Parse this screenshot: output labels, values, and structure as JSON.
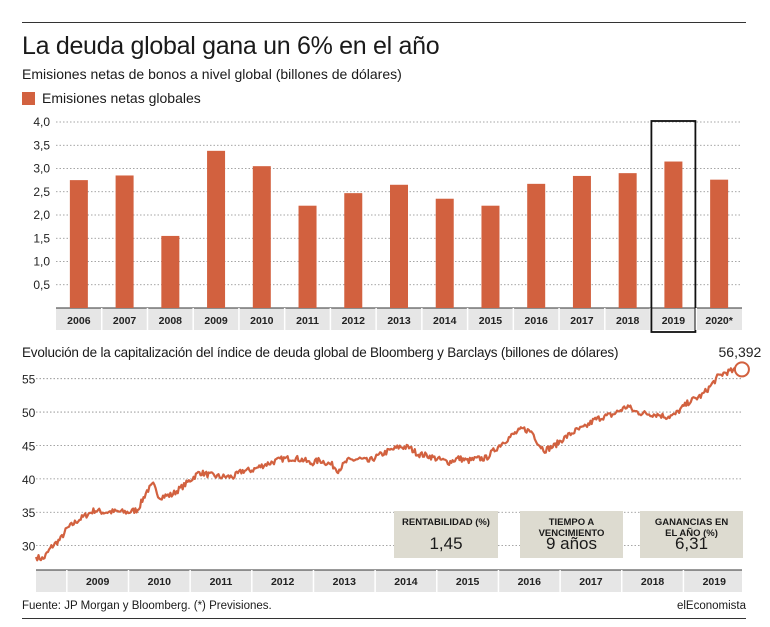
{
  "header": {
    "title": "La deuda global gana un 6% en el año",
    "subtitle": "Emisiones netas de bonos a nivel global (billones de dólares)",
    "legend_label": "Emisiones netas globales"
  },
  "colors": {
    "bar": "#d2613f",
    "line": "#d2613f",
    "grid": "#888888",
    "box_bg": "#dddbd0",
    "axis_band": "#e6e6e6"
  },
  "chart_data": [
    {
      "type": "bar",
      "title": "Emisiones netas de bonos a nivel global (billones de dólares)",
      "series_name": "Emisiones netas globales",
      "categories": [
        "2006",
        "2007",
        "2008",
        "2009",
        "2010",
        "2011",
        "2012",
        "2013",
        "2014",
        "2015",
        "2016",
        "2017",
        "2018",
        "2019",
        "2020*"
      ],
      "values": [
        2.75,
        2.85,
        1.55,
        3.38,
        3.05,
        2.2,
        2.47,
        2.65,
        2.35,
        2.2,
        2.67,
        2.84,
        2.9,
        3.15,
        2.76
      ],
      "ylim": [
        0,
        4.0
      ],
      "yticks": [
        "0,5",
        "1,0",
        "1,5",
        "2,0",
        "2,5",
        "3,0",
        "3,5",
        "4,0"
      ],
      "ytick_values": [
        0.5,
        1.0,
        1.5,
        2.0,
        2.5,
        3.0,
        3.5,
        4.0
      ],
      "highlight": "2019",
      "grid": true
    },
    {
      "type": "line",
      "title": "Evolución de la capitalización del índice de deuda global de Bloomberg y Barclays (billones de dólares)",
      "x_range": [
        2008.5,
        2019.95
      ],
      "xticks": [
        "2009",
        "2010",
        "2011",
        "2012",
        "2013",
        "2014",
        "2015",
        "2016",
        "2017",
        "2018",
        "2019"
      ],
      "ylim": [
        26.5,
        57.5
      ],
      "yticks": [
        "30",
        "35",
        "40",
        "45",
        "50",
        "55"
      ],
      "ytick_values": [
        30,
        35,
        40,
        45,
        50,
        55
      ],
      "points": [
        [
          2008.5,
          28.3
        ],
        [
          2008.62,
          28.0
        ],
        [
          2008.75,
          29.8
        ],
        [
          2008.9,
          31.0
        ],
        [
          2009.0,
          32.5
        ],
        [
          2009.15,
          33.6
        ],
        [
          2009.3,
          34.5
        ],
        [
          2009.45,
          35.3
        ],
        [
          2009.6,
          35.0
        ],
        [
          2009.8,
          35.1
        ],
        [
          2010.0,
          35.0
        ],
        [
          2010.15,
          35.4
        ],
        [
          2010.3,
          38.2
        ],
        [
          2010.4,
          39.1
        ],
        [
          2010.5,
          37.3
        ],
        [
          2010.7,
          37.6
        ],
        [
          2010.9,
          39.0
        ],
        [
          2011.0,
          39.8
        ],
        [
          2011.15,
          41.0
        ],
        [
          2011.3,
          40.6
        ],
        [
          2011.5,
          40.3
        ],
        [
          2011.7,
          40.3
        ],
        [
          2011.85,
          41.2
        ],
        [
          2012.0,
          41.3
        ],
        [
          2012.2,
          42.1
        ],
        [
          2012.5,
          43.0
        ],
        [
          2012.7,
          43.1
        ],
        [
          2012.85,
          42.8
        ],
        [
          2012.95,
          42.3
        ],
        [
          2013.1,
          42.8
        ],
        [
          2013.3,
          42.1
        ],
        [
          2013.4,
          41.3
        ],
        [
          2013.55,
          42.7
        ],
        [
          2013.75,
          43.0
        ],
        [
          2013.9,
          42.6
        ],
        [
          2014.0,
          43.2
        ],
        [
          2014.2,
          44.1
        ],
        [
          2014.4,
          44.8
        ],
        [
          2014.55,
          44.7
        ],
        [
          2014.7,
          43.7
        ],
        [
          2014.85,
          43.5
        ],
        [
          2015.0,
          43.0
        ],
        [
          2015.2,
          42.5
        ],
        [
          2015.35,
          43.1
        ],
        [
          2015.5,
          42.7
        ],
        [
          2015.65,
          43.0
        ],
        [
          2015.8,
          43.1
        ],
        [
          2015.9,
          44.0
        ],
        [
          2016.05,
          45.3
        ],
        [
          2016.25,
          46.7
        ],
        [
          2016.4,
          47.5
        ],
        [
          2016.55,
          47.0
        ],
        [
          2016.65,
          45.2
        ],
        [
          2016.75,
          44.3
        ],
        [
          2016.9,
          44.9
        ],
        [
          2017.05,
          46.0
        ],
        [
          2017.25,
          47.2
        ],
        [
          2017.4,
          47.7
        ],
        [
          2017.55,
          48.8
        ],
        [
          2017.7,
          49.3
        ],
        [
          2017.85,
          49.6
        ],
        [
          2018.0,
          50.4
        ],
        [
          2018.1,
          50.9
        ],
        [
          2018.2,
          50.1
        ],
        [
          2018.35,
          49.8
        ],
        [
          2018.5,
          49.7
        ],
        [
          2018.6,
          49.6
        ],
        [
          2018.72,
          49.3
        ],
        [
          2018.85,
          49.5
        ],
        [
          2018.95,
          50.4
        ],
        [
          2019.1,
          51.6
        ],
        [
          2019.3,
          52.5
        ],
        [
          2019.45,
          54.0
        ],
        [
          2019.55,
          55.2
        ],
        [
          2019.65,
          55.8
        ],
        [
          2019.75,
          56.1
        ],
        [
          2019.83,
          56.2
        ],
        [
          2019.9,
          56.39
        ]
      ],
      "last_value_label": "56,392"
    }
  ],
  "stats": [
    {
      "label": "RENTABILIDAD (%)",
      "value": "1,45"
    },
    {
      "label": "TIEMPO A VENCIMIENTO",
      "value": "9 años"
    },
    {
      "label": "GANANCIAS EN EL AÑO (%)",
      "value": "6,31"
    }
  ],
  "footer": {
    "source": "Fuente: JP Morgan y Bloomberg. (*) Previsiones.",
    "brand": "elEconomista"
  }
}
